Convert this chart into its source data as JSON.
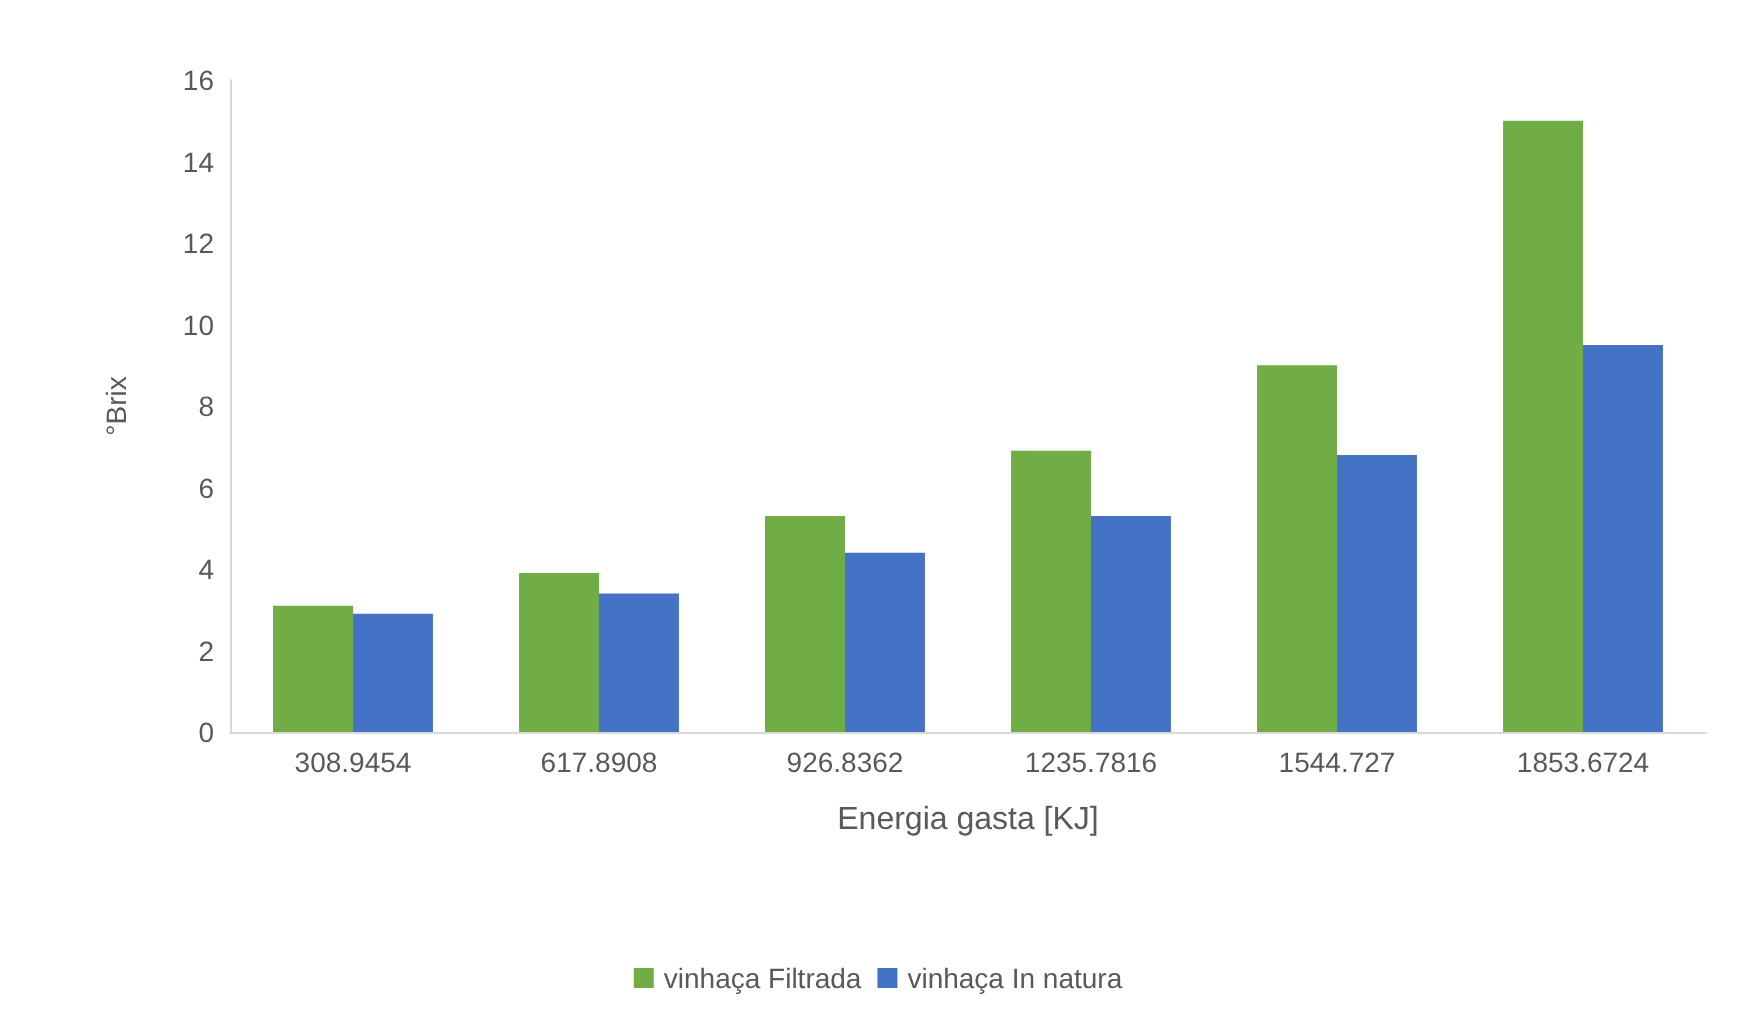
{
  "chart_data": {
    "type": "bar",
    "xlabel": "Energia gasta [KJ]",
    "ylabel": "°Brix",
    "categories": [
      "308.9454",
      "617.8908",
      "926.8362",
      "1235.7816",
      "1544.727",
      "1853.6724"
    ],
    "series": [
      {
        "name": "vinhaça Filtrada",
        "color": "#70ad47",
        "values": [
          3.1,
          3.9,
          5.3,
          6.9,
          9.0,
          15.0
        ]
      },
      {
        "name": "vinhaça In natura",
        "color": "#4472c4",
        "values": [
          2.9,
          3.4,
          4.4,
          5.3,
          6.8,
          9.5
        ]
      }
    ],
    "ylim": [
      0,
      16
    ],
    "yticks": [
      0,
      2,
      4,
      6,
      8,
      10,
      12,
      14,
      16
    ],
    "grid": false,
    "legend": "bottom"
  }
}
